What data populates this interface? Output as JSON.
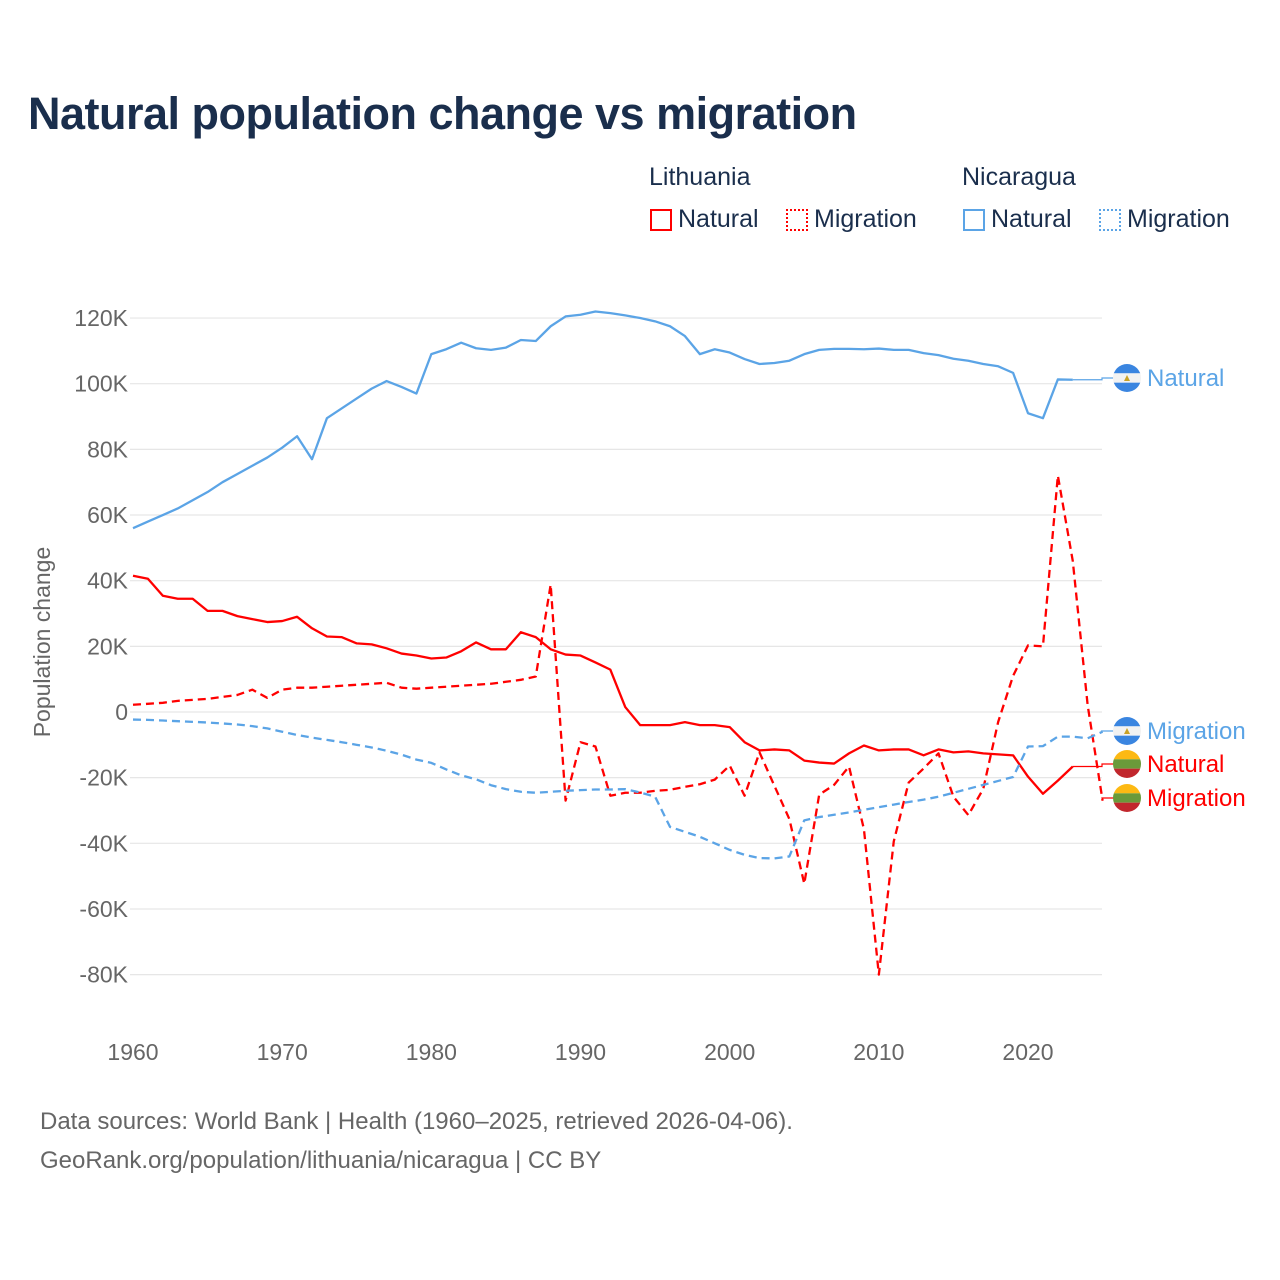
{
  "chart_data": {
    "type": "line",
    "title": "Natural population change vs migration",
    "ylabel": "Population change",
    "xlabel": "",
    "xlim": [
      1960,
      2025
    ],
    "ylim": [
      -90000,
      125000
    ],
    "x_ticks": [
      1960,
      1970,
      1980,
      1990,
      2000,
      2010,
      2020
    ],
    "x_tick_labels": [
      "1960",
      "1970",
      "1980",
      "1990",
      "2000",
      "2010",
      "2020"
    ],
    "y_ticks": [
      120000,
      100000,
      80000,
      60000,
      40000,
      20000,
      0,
      -20000,
      -40000,
      -60000,
      -80000
    ],
    "y_tick_labels": [
      "120K",
      "100K",
      "80K",
      "60K",
      "40K",
      "20K",
      "0",
      "-20K",
      "-40K",
      "-60K",
      "-80K"
    ],
    "grid": true,
    "legend": {
      "placement": "top-right",
      "groups": [
        {
          "country": "Lithuania",
          "items": [
            "Natural",
            "Migration"
          ]
        },
        {
          "country": "Nicaragua",
          "items": [
            "Natural",
            "Migration"
          ]
        }
      ]
    },
    "x_start": 1960,
    "series": [
      {
        "name": "Lithuania Natural",
        "country": "Lithuania",
        "kind": "Natural",
        "label": "Natural",
        "color": "#ff0000",
        "dash": "solid",
        "values": [
          41.5,
          40.6,
          35.4,
          34.5,
          34.5,
          30.8,
          30.8,
          29.2,
          28.3,
          27.4,
          27.7,
          29,
          25.5,
          23,
          22.8,
          20.9,
          20.6,
          19.4,
          17.8,
          17.2,
          16.3,
          16.6,
          18.5,
          21.2,
          19.1,
          19.1,
          24.3,
          22.8,
          19.1,
          17.5,
          17.2,
          15.1,
          12.9,
          1.5,
          -4,
          -4,
          -4,
          -3.1,
          -4,
          -4,
          -4.6,
          -9.2,
          -11.7,
          -11.4,
          -11.7,
          -14.8,
          -15.4,
          -15.7,
          -12.6,
          -10.2,
          -11.7,
          -11.4,
          -11.4,
          -13.2,
          -11.4,
          -12.3,
          -12,
          -12.6,
          -12.9,
          -13.2,
          -19.7,
          -24.9,
          -20.9,
          -16.6
        ]
      },
      {
        "name": "Lithuania Migration",
        "country": "Lithuania",
        "kind": "Migration",
        "label": "Migration",
        "color": "#ff0000",
        "dash": "dashed",
        "values": [
          2.2,
          2.5,
          2.8,
          3.4,
          3.7,
          4,
          4.6,
          5.2,
          6.8,
          4.3,
          6.8,
          7.4,
          7.4,
          7.7,
          8,
          8.3,
          8.6,
          8.9,
          7.4,
          7.1,
          7.4,
          7.7,
          8,
          8.3,
          8.6,
          9.2,
          9.8,
          10.8,
          38.8,
          -27,
          -9.2,
          -10.5,
          -25.5,
          -24.6,
          -24.6,
          -24,
          -23.7,
          -22.8,
          -22,
          -20.6,
          -16.3,
          -25.5,
          -12.3,
          -22.5,
          -32.6,
          -52.3,
          -25.2,
          -22.2,
          -16.6,
          -35.7,
          -80,
          -39.4,
          -21.5,
          -17.2,
          -12.6,
          -25.8,
          -31.4,
          -23.4,
          -3,
          11,
          20.3,
          20,
          72,
          46,
          2,
          -27
        ]
      },
      {
        "name": "Nicaragua Natural",
        "country": "Nicaragua",
        "kind": "Natural",
        "label": "Natural",
        "color": "#5ba4e6",
        "dash": "solid",
        "values": [
          56,
          58,
          60,
          62,
          64.5,
          67,
          70,
          72.5,
          75,
          77.5,
          80.5,
          84,
          77,
          89.5,
          92.5,
          95.5,
          98.5,
          100.8,
          99,
          97,
          109,
          110.5,
          112.5,
          110.8,
          110.3,
          111,
          113.3,
          113,
          117.5,
          120.5,
          121,
          122,
          121.5,
          120.8,
          120,
          119,
          117.5,
          114.5,
          109,
          110.5,
          109.5,
          107.5,
          106,
          106.3,
          107,
          109,
          110.3,
          110.6,
          110.6,
          110.5,
          110.7,
          110.3,
          110.3,
          109.3,
          108.7,
          107.6,
          107,
          106,
          105.3,
          103.3,
          91,
          89.5,
          101.3,
          101.2
        ]
      },
      {
        "name": "Nicaragua Migration",
        "country": "Nicaragua",
        "kind": "Migration",
        "label": "Migration",
        "color": "#5ba4e6",
        "dash": "dashed",
        "values": [
          -2.3,
          -2.4,
          -2.6,
          -2.8,
          -3,
          -3.2,
          -3.5,
          -3.8,
          -4.3,
          -5,
          -6,
          -7,
          -7.8,
          -8.5,
          -9.2,
          -10,
          -10.8,
          -11.8,
          -13,
          -14.5,
          -15.5,
          -17.5,
          -19.3,
          -20.5,
          -22.3,
          -23.5,
          -24.3,
          -24.6,
          -24.3,
          -24,
          -23.8,
          -23.6,
          -23.6,
          -23.5,
          -24.5,
          -25.8,
          -35,
          -36.5,
          -38,
          -40,
          -42,
          -43.5,
          -44.5,
          -44.6,
          -44,
          -33,
          -32,
          -31.3,
          -30.6,
          -29.8,
          -29,
          -28.2,
          -27.4,
          -26.7,
          -25.8,
          -24.6,
          -23.4,
          -22.2,
          -21,
          -19.8,
          -10.5,
          -10.4,
          -7.5,
          -7.5,
          -8,
          -6
        ]
      }
    ],
    "value_unit": "thousands"
  },
  "footer": {
    "line1": "Data sources: World Bank | Health (1960–2025, retrieved 2026-04-06).",
    "line2": "GeoRank.org/population/lithuania/nicaragua | CC BY"
  }
}
